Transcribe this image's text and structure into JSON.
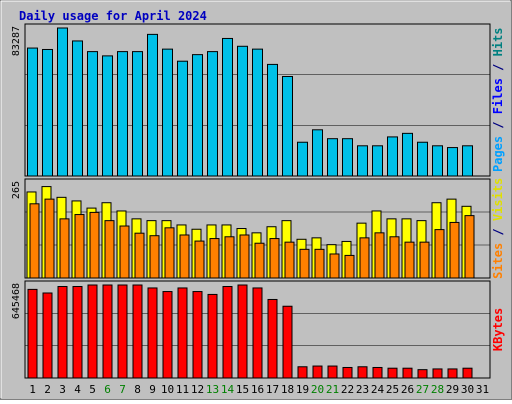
{
  "chart_data": [
    {
      "type": "bar",
      "title": "Daily usage for April 2024",
      "categories": [
        "1",
        "2",
        "3",
        "4",
        "5",
        "6",
        "7",
        "8",
        "9",
        "10",
        "11",
        "12",
        "13",
        "14",
        "15",
        "16",
        "17",
        "18",
        "19",
        "20",
        "21",
        "22",
        "23",
        "24",
        "25",
        "26",
        "27",
        "28",
        "29",
        "30",
        "31"
      ],
      "weekend_days": [
        6,
        7,
        13,
        14,
        20,
        21,
        27,
        28
      ],
      "ylabel_parts": [
        {
          "text": "Pages",
          "color": "#00a0ff"
        },
        {
          "text": " / ",
          "color": "#000080"
        },
        {
          "text": "Files",
          "color": "#0000ff"
        },
        {
          "text": " / ",
          "color": "#000080"
        },
        {
          "text": "Hits",
          "color": "#008080"
        }
      ],
      "y_max_label": "83287",
      "ylim": [
        0,
        83287
      ],
      "series": [
        {
          "name": "Hits",
          "color": "#00c0e8",
          "values": [
            72000,
            71200,
            83287,
            76000,
            70000,
            67600,
            70000,
            70000,
            79700,
            71400,
            64600,
            68300,
            70000,
            77400,
            73000,
            71400,
            62800,
            56000,
            19000,
            26000,
            21000,
            21000,
            17000,
            17000,
            22000,
            24000,
            19000,
            17000,
            16000,
            17000,
            0
          ]
        },
        {
          "name": "Files",
          "color": "#0000ff",
          "values": [
            0,
            0,
            0,
            0,
            0,
            0,
            0,
            0,
            0,
            0,
            0,
            0,
            0,
            0,
            0,
            0,
            0,
            0,
            0,
            0,
            0,
            0,
            0,
            0,
            0,
            0,
            0,
            0,
            0,
            0,
            0
          ]
        },
        {
          "name": "Pages",
          "color": "#00a0ff",
          "values": [
            0,
            0,
            0,
            0,
            0,
            0,
            0,
            0,
            0,
            0,
            0,
            0,
            0,
            0,
            0,
            0,
            0,
            0,
            0,
            0,
            0,
            0,
            0,
            0,
            0,
            0,
            0,
            0,
            0,
            0,
            0
          ]
        }
      ]
    },
    {
      "type": "bar",
      "categories": [
        "1",
        "2",
        "3",
        "4",
        "5",
        "6",
        "7",
        "8",
        "9",
        "10",
        "11",
        "12",
        "13",
        "14",
        "15",
        "16",
        "17",
        "18",
        "19",
        "20",
        "21",
        "22",
        "23",
        "24",
        "25",
        "26",
        "27",
        "28",
        "29",
        "30",
        "31"
      ],
      "ylabel_parts": [
        {
          "text": "Sites",
          "color": "#ff8000"
        },
        {
          "text": " / ",
          "color": "#000080"
        },
        {
          "text": "Visits",
          "color": "#e0e000"
        }
      ],
      "y_max_label": "265",
      "ylim": [
        0,
        265
      ],
      "series": [
        {
          "name": "Visits",
          "color": "#ffff00",
          "values": [
            240,
            255,
            225,
            215,
            195,
            210,
            187,
            165,
            160,
            160,
            148,
            136,
            148,
            148,
            138,
            126,
            143,
            160,
            108,
            112,
            93,
            102,
            153,
            187,
            165,
            165,
            160,
            210,
            220,
            200,
            0
          ]
        },
        {
          "name": "Sites",
          "color": "#ff8000",
          "values": [
            207,
            220,
            165,
            177,
            183,
            160,
            145,
            125,
            118,
            140,
            120,
            103,
            110,
            115,
            120,
            97,
            110,
            100,
            80,
            80,
            67,
            63,
            112,
            126,
            115,
            100,
            100,
            135,
            155,
            174,
            0
          ]
        }
      ]
    },
    {
      "type": "bar",
      "categories": [
        "1",
        "2",
        "3",
        "4",
        "5",
        "6",
        "7",
        "8",
        "9",
        "10",
        "11",
        "12",
        "13",
        "14",
        "15",
        "16",
        "17",
        "18",
        "19",
        "20",
        "21",
        "22",
        "23",
        "24",
        "25",
        "26",
        "27",
        "28",
        "29",
        "30",
        "31"
      ],
      "ylabel_parts": [
        {
          "text": "KBytes",
          "color": "#ff0000"
        }
      ],
      "y_max_label": "645468",
      "ylim": [
        0,
        645468
      ],
      "series": [
        {
          "name": "KBytes",
          "color": "#ff0000",
          "values": [
            615000,
            590000,
            635000,
            635000,
            645468,
            645468,
            645468,
            645468,
            625000,
            600000,
            625000,
            600000,
            580000,
            635000,
            645468,
            625000,
            545000,
            498000,
            78000,
            83000,
            83000,
            73000,
            78000,
            73000,
            68000,
            68000,
            58000,
            63000,
            63000,
            68000,
            0
          ]
        }
      ]
    }
  ]
}
